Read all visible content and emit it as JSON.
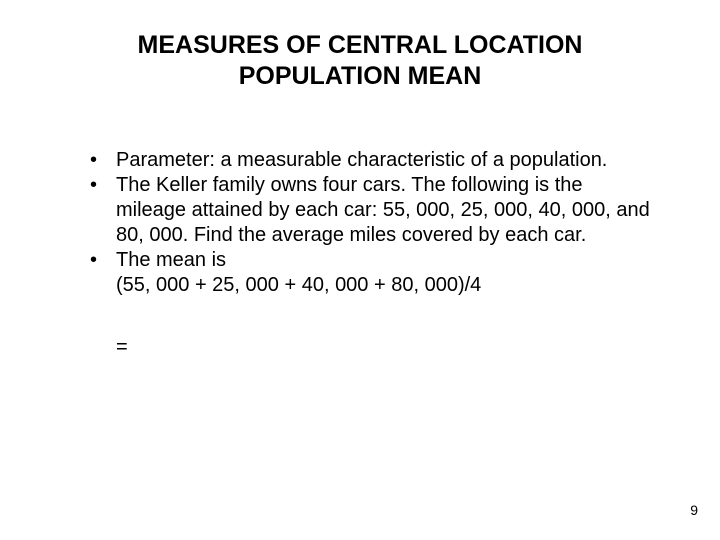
{
  "title_line1": "MEASURES OF CENTRAL LOCATION",
  "title_line2": "POPULATION MEAN",
  "bullets": {
    "b1": "Parameter: a measurable characteristic of a population.",
    "b2": "The Keller family owns four cars.  The following is the mileage attained by each car: 55, 000, 25, 000, 40, 000, and 80, 000.  Find the average miles covered by each car.",
    "b3": "The mean is"
  },
  "calc": "(55, 000 + 25, 000 + 40, 000 + 80, 000)/4",
  "equals": "=",
  "page_number": "9",
  "colors": {
    "text": "#000000",
    "background": "#ffffff"
  },
  "fontsizes": {
    "title": 25,
    "body": 20,
    "page_number": 14
  }
}
